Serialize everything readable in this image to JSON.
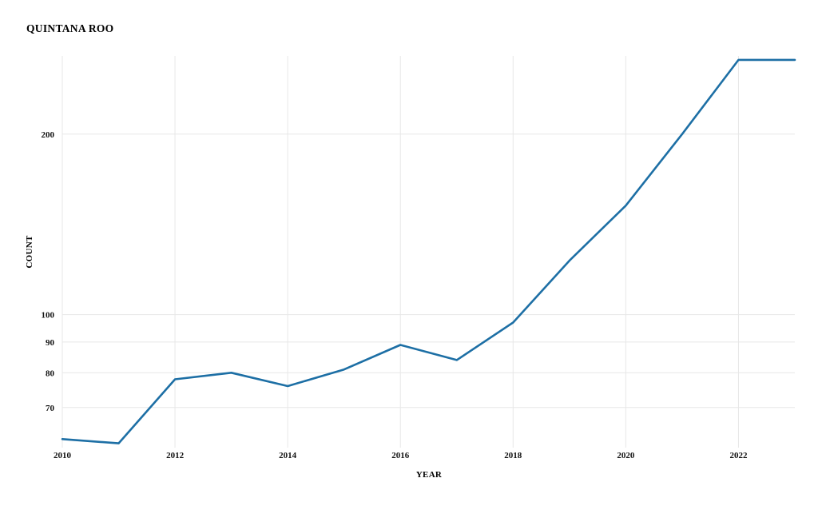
{
  "page": {
    "title": "QUINTANA ROO"
  },
  "chart_data": {
    "type": "line",
    "title": "QUINTANA ROO",
    "xlabel": "YEAR",
    "ylabel": "COUNT",
    "x": [
      2010,
      2011,
      2012,
      2013,
      2014,
      2015,
      2016,
      2017,
      2018,
      2019,
      2020,
      2021,
      2022,
      2023
    ],
    "values": [
      62,
      61,
      78,
      80,
      76,
      81,
      89,
      84,
      97,
      123,
      152,
      200,
      266,
      266
    ],
    "series_name": "count",
    "xlim": [
      2010,
      2023
    ],
    "ylim": [
      60,
      270
    ],
    "yscale": "log",
    "xticks": [
      2010,
      2012,
      2014,
      2016,
      2018,
      2020,
      2022
    ],
    "yticks": [
      70,
      80,
      90,
      100,
      200
    ],
    "grid": true,
    "legend": "none",
    "line_color": "#1d6fa5",
    "grid_color": "#e7e7e7",
    "background_color": "#ffffff"
  }
}
